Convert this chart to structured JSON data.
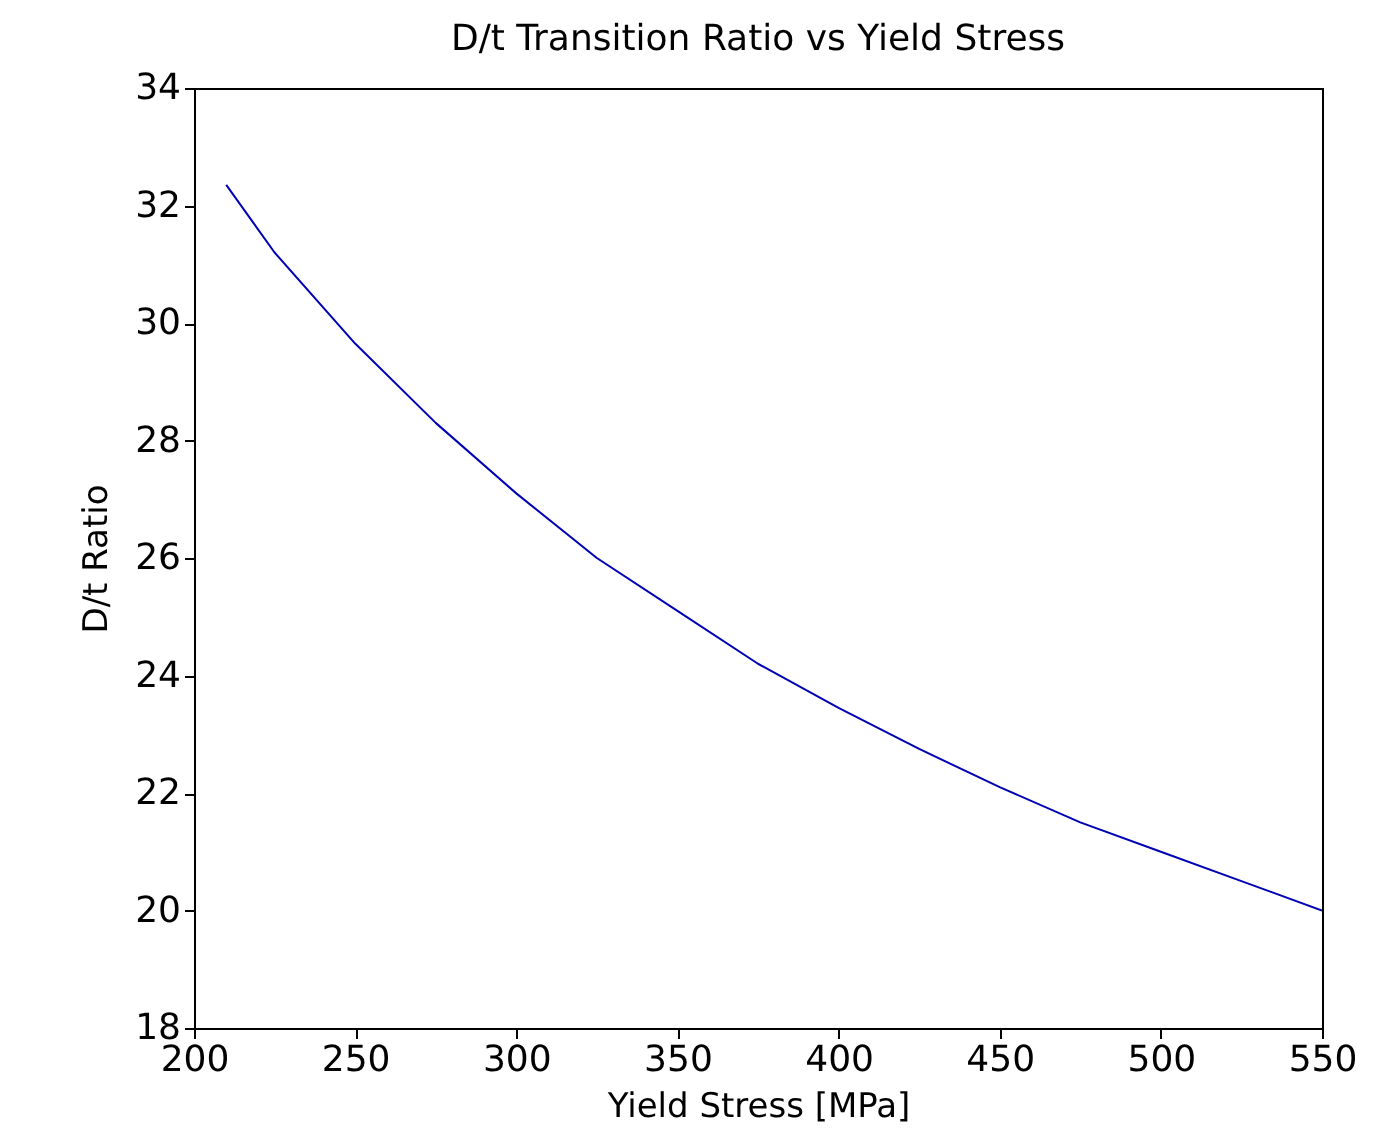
{
  "chart_data": {
    "type": "line",
    "title": "D/t Transition Ratio vs Yield Stress",
    "xlabel": "Yield Stress [MPa]",
    "ylabel": "D/t Ratio",
    "x": [
      210,
      225,
      250,
      275,
      300,
      325,
      350,
      375,
      400,
      425,
      450,
      475,
      500,
      525,
      550
    ],
    "series": [
      {
        "color": "#0000b4",
        "values": [
          32.35,
          31.2,
          29.65,
          28.3,
          27.1,
          26.0,
          25.1,
          24.2,
          23.45,
          22.75,
          22.1,
          21.5,
          21.0,
          20.5,
          20.0
        ]
      }
    ],
    "xlim": [
      200,
      550
    ],
    "xticks": [
      200,
      250,
      300,
      350,
      400,
      450,
      500,
      550
    ],
    "ylim": [
      18,
      34
    ],
    "yticks": [
      18,
      20,
      22,
      24,
      26,
      28,
      30,
      32,
      34
    ],
    "grid": false,
    "marker": "none",
    "line_style": "solid"
  }
}
